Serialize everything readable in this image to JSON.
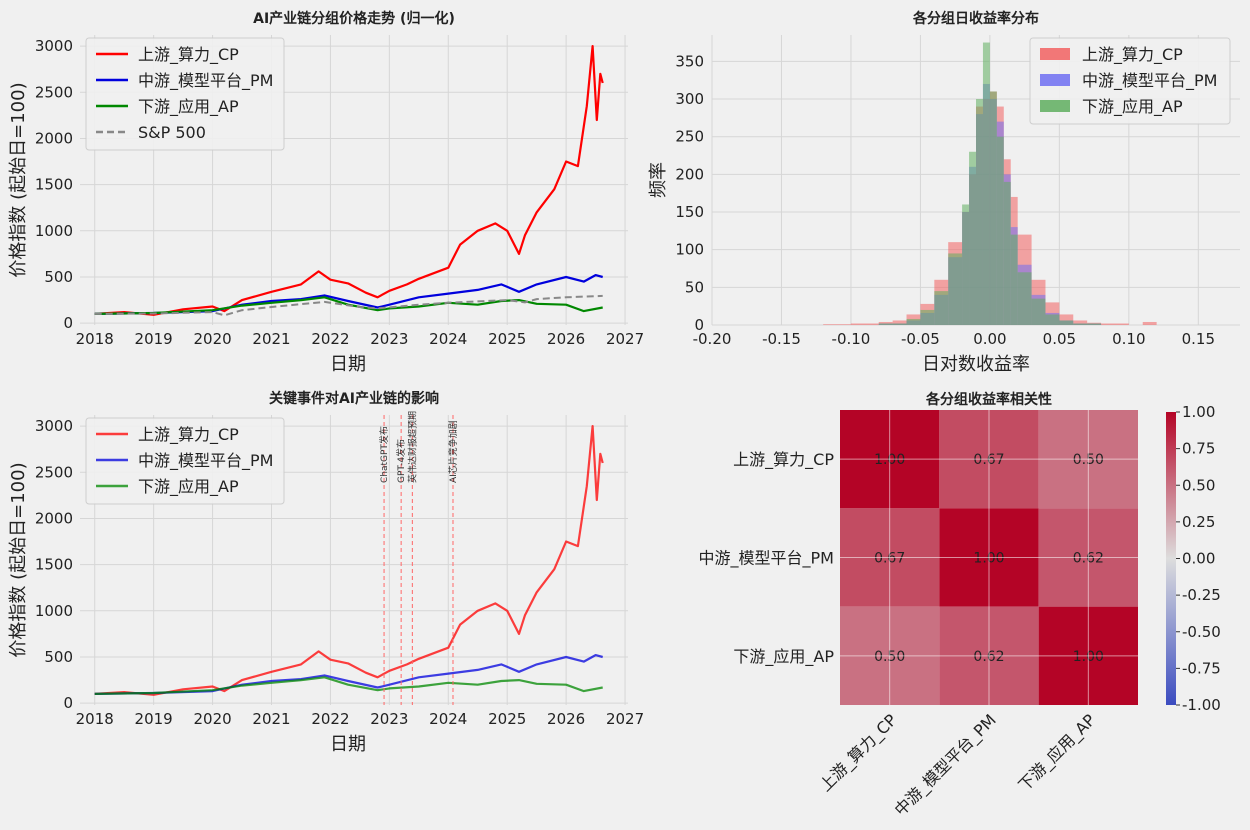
{
  "colors": {
    "up": "#ff0000",
    "mid": "#0000dd",
    "down": "#008800",
    "sp": "#888888",
    "hist_up": "#f26161",
    "hist_mid": "#6f6ff2",
    "hist_down": "#5fae5f"
  },
  "chart_data": [
    {
      "id": "price",
      "type": "line",
      "title": "AI产业链分组价格走势 (归一化)",
      "xlabel": "日期",
      "ylabel": "价格指数 (起始日=100)",
      "xlim": [
        2017.75,
        2027.05
      ],
      "ylim": [
        -20,
        3120
      ],
      "xticks": [
        2018,
        2019,
        2020,
        2021,
        2022,
        2023,
        2024,
        2025,
        2026,
        2027
      ],
      "yticks": [
        0,
        500,
        1000,
        1500,
        2000,
        2500,
        3000
      ],
      "legend": "top-left",
      "series": [
        {
          "name": "上游_算力_CP",
          "color_key": "up",
          "style": "solid",
          "x": [
            2018.0,
            2018.5,
            2019.0,
            2019.5,
            2020.0,
            2020.2,
            2020.5,
            2021.0,
            2021.5,
            2021.8,
            2022.0,
            2022.3,
            2022.6,
            2022.8,
            2023.0,
            2023.3,
            2023.5,
            2024.0,
            2024.2,
            2024.5,
            2024.8,
            2025.0,
            2025.2,
            2025.3,
            2025.5,
            2025.8,
            2026.0,
            2026.2,
            2026.35,
            2026.45,
            2026.52,
            2026.58,
            2026.62
          ],
          "y": [
            100,
            120,
            90,
            150,
            180,
            130,
            250,
            340,
            420,
            560,
            470,
            430,
            330,
            280,
            350,
            420,
            480,
            600,
            850,
            1000,
            1080,
            1000,
            750,
            950,
            1200,
            1450,
            1750,
            1700,
            2350,
            3000,
            2200,
            2700,
            2600
          ]
        },
        {
          "name": "中游_模型平台_PM",
          "color_key": "mid",
          "style": "solid",
          "x": [
            2018.0,
            2019.0,
            2020.0,
            2020.5,
            2021.0,
            2021.5,
            2021.9,
            2022.3,
            2022.8,
            2023.0,
            2023.5,
            2024.0,
            2024.5,
            2024.9,
            2025.2,
            2025.5,
            2026.0,
            2026.3,
            2026.5,
            2026.62
          ],
          "y": [
            100,
            110,
            130,
            200,
            240,
            260,
            300,
            240,
            170,
            200,
            280,
            320,
            360,
            420,
            340,
            420,
            500,
            450,
            520,
            500
          ]
        },
        {
          "name": "下游_应用_AP",
          "color_key": "down",
          "style": "solid",
          "x": [
            2018.0,
            2019.0,
            2020.0,
            2020.5,
            2021.0,
            2021.5,
            2021.9,
            2022.3,
            2022.8,
            2023.0,
            2023.5,
            2024.0,
            2024.5,
            2024.9,
            2025.2,
            2025.5,
            2026.0,
            2026.3,
            2026.62
          ],
          "y": [
            100,
            110,
            140,
            190,
            220,
            250,
            280,
            200,
            140,
            160,
            180,
            220,
            200,
            240,
            250,
            210,
            200,
            130,
            170
          ]
        },
        {
          "name": "S&P 500",
          "color_key": "sp",
          "style": "dashed",
          "x": [
            2018.0,
            2019.0,
            2020.0,
            2020.2,
            2020.5,
            2021.0,
            2021.9,
            2022.5,
            2022.8,
            2023.5,
            2024.0,
            2024.5,
            2025.0,
            2025.3,
            2025.5,
            2026.0,
            2026.62
          ],
          "y": [
            100,
            105,
            120,
            85,
            140,
            175,
            230,
            175,
            160,
            200,
            220,
            235,
            250,
            225,
            260,
            280,
            295
          ]
        }
      ]
    },
    {
      "id": "hist",
      "type": "bar",
      "title": "各分组日收益率分布",
      "xlabel": "日对数收益率",
      "ylabel": "频率",
      "xlim": [
        -0.2,
        0.18
      ],
      "ylim": [
        0,
        385
      ],
      "xticks": [
        -0.2,
        -0.15,
        -0.1,
        -0.05,
        0.0,
        0.05,
        0.1,
        0.15
      ],
      "xtick_labels": [
        "-0.20",
        "-0.15",
        "-0.10",
        "-0.05",
        "0.00",
        "0.05",
        "0.10",
        "0.15"
      ],
      "yticks": [
        0,
        50,
        100,
        150,
        200,
        250,
        300,
        350
      ],
      "legend": "top-right",
      "series": [
        {
          "name": "上游_算力_CP",
          "color_key": "hist_up",
          "bins": [
            [
              -0.12,
              -0.1,
              1
            ],
            [
              -0.1,
              -0.08,
              2
            ],
            [
              -0.08,
              -0.07,
              4
            ],
            [
              -0.07,
              -0.06,
              6
            ],
            [
              -0.06,
              -0.05,
              14
            ],
            [
              -0.05,
              -0.04,
              28
            ],
            [
              -0.04,
              -0.03,
              60
            ],
            [
              -0.03,
              -0.02,
              110
            ],
            [
              -0.02,
              -0.015,
              150
            ],
            [
              -0.015,
              -0.01,
              200
            ],
            [
              -0.01,
              -0.005,
              290
            ],
            [
              -0.005,
              0.0,
              300
            ],
            [
              0.0,
              0.005,
              310
            ],
            [
              0.005,
              0.01,
              290
            ],
            [
              0.01,
              0.015,
              220
            ],
            [
              0.015,
              0.02,
              170
            ],
            [
              0.02,
              0.03,
              120
            ],
            [
              0.03,
              0.04,
              60
            ],
            [
              0.04,
              0.05,
              30
            ],
            [
              0.05,
              0.06,
              14
            ],
            [
              0.06,
              0.07,
              6
            ],
            [
              0.07,
              0.08,
              3
            ],
            [
              0.08,
              0.1,
              2
            ],
            [
              0.11,
              0.12,
              4
            ]
          ]
        },
        {
          "name": "中游_模型平台_PM",
          "color_key": "hist_mid",
          "bins": [
            [
              -0.08,
              -0.06,
              2
            ],
            [
              -0.06,
              -0.05,
              6
            ],
            [
              -0.05,
              -0.04,
              16
            ],
            [
              -0.04,
              -0.03,
              40
            ],
            [
              -0.03,
              -0.02,
              90
            ],
            [
              -0.02,
              -0.015,
              150
            ],
            [
              -0.015,
              -0.01,
              210
            ],
            [
              -0.01,
              -0.005,
              280
            ],
            [
              -0.005,
              0.0,
              320
            ],
            [
              0.0,
              0.005,
              300
            ],
            [
              0.005,
              0.01,
              270
            ],
            [
              0.01,
              0.015,
              200
            ],
            [
              0.015,
              0.02,
              130
            ],
            [
              0.02,
              0.03,
              80
            ],
            [
              0.03,
              0.04,
              40
            ],
            [
              0.04,
              0.05,
              16
            ],
            [
              0.05,
              0.06,
              6
            ],
            [
              0.06,
              0.08,
              2
            ]
          ]
        },
        {
          "name": "下游_应用_AP",
          "color_key": "hist_down",
          "bins": [
            [
              -0.08,
              -0.06,
              2
            ],
            [
              -0.06,
              -0.05,
              8
            ],
            [
              -0.05,
              -0.04,
              20
            ],
            [
              -0.04,
              -0.03,
              45
            ],
            [
              -0.03,
              -0.02,
              95
            ],
            [
              -0.02,
              -0.015,
              160
            ],
            [
              -0.015,
              -0.01,
              230
            ],
            [
              -0.01,
              -0.005,
              300
            ],
            [
              -0.005,
              0.0,
              375
            ],
            [
              0.0,
              0.005,
              310
            ],
            [
              0.005,
              0.01,
              250
            ],
            [
              0.01,
              0.015,
              190
            ],
            [
              0.015,
              0.02,
              120
            ],
            [
              0.02,
              0.03,
              70
            ],
            [
              0.03,
              0.04,
              35
            ],
            [
              0.04,
              0.05,
              14
            ],
            [
              0.05,
              0.06,
              6
            ],
            [
              0.06,
              0.08,
              2
            ]
          ]
        }
      ]
    },
    {
      "id": "events",
      "type": "line",
      "title": "关键事件对AI产业链的影响",
      "xlabel": "日期",
      "ylabel": "价格指数 (起始日=100)",
      "xlim": [
        2017.75,
        2027.05
      ],
      "ylim": [
        -20,
        3120
      ],
      "xticks": [
        2018,
        2019,
        2020,
        2021,
        2022,
        2023,
        2024,
        2025,
        2026,
        2027
      ],
      "yticks": [
        0,
        500,
        1000,
        1500,
        2000,
        2500,
        3000
      ],
      "legend": "top-left",
      "events": [
        {
          "x": 2022.91,
          "label": "ChatGPT发布"
        },
        {
          "x": 2023.2,
          "label": "GPT-4发布"
        },
        {
          "x": 2023.39,
          "label": "英伟达财报超预期"
        },
        {
          "x": 2024.08,
          "label": "AI芯片竞争加剧"
        }
      ],
      "series_refs": [
        "上游_算力_CP",
        "中游_模型平台_PM",
        "下游_应用_AP"
      ]
    },
    {
      "id": "corr",
      "type": "heatmap",
      "title": "各分组收益率相关性",
      "labels": [
        "上游_算力_CP",
        "中游_模型平台_PM",
        "下游_应用_AP"
      ],
      "matrix": [
        [
          1.0,
          0.67,
          0.5
        ],
        [
          0.67,
          1.0,
          0.62
        ],
        [
          0.5,
          0.62,
          1.0
        ]
      ],
      "cell_labels": [
        [
          "1.00",
          "0.67",
          "0.50"
        ],
        [
          "0.67",
          "1.00",
          "0.62"
        ],
        [
          "0.50",
          "0.62",
          "1.00"
        ]
      ],
      "colormap": "coolwarm",
      "vmin": -1,
      "vmax": 1,
      "colorbar_ticks": [
        "1.00",
        "0.75",
        "0.50",
        "0.25",
        "0.00",
        "-0.25",
        "-0.50",
        "-0.75",
        "-1.00"
      ]
    }
  ]
}
